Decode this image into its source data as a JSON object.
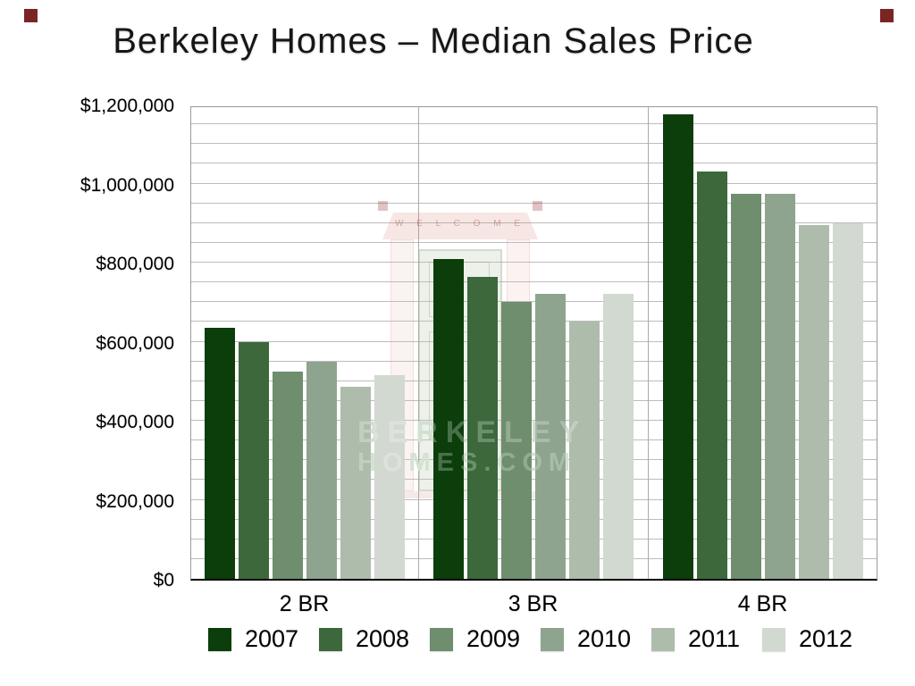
{
  "title": "Berkeley Homes – Median Sales Price",
  "theme": {
    "accent_red": "#7b2425",
    "grid_color": "#bcbcbc",
    "axis_color": "#000000"
  },
  "watermark": {
    "line1": "BERKELEY",
    "line2": "HOMES.COM",
    "welcome": "W E L C O M E"
  },
  "chart_data": {
    "type": "bar",
    "title": "Berkeley Homes – Median Sales Price",
    "categories": [
      "2 BR",
      "3 BR",
      "4 BR"
    ],
    "series": [
      {
        "name": "2007",
        "color": "#0B3E0B",
        "values": [
          635000,
          810000,
          1175000
        ]
      },
      {
        "name": "2008",
        "color": "#3C683C",
        "values": [
          600000,
          765000,
          1030000
        ]
      },
      {
        "name": "2009",
        "color": "#6E8E6E",
        "values": [
          525000,
          700000,
          975000
        ]
      },
      {
        "name": "2010",
        "color": "#8EA48E",
        "values": [
          550000,
          720000,
          975000
        ]
      },
      {
        "name": "2011",
        "color": "#AEBCAC",
        "values": [
          485000,
          650000,
          895000
        ]
      },
      {
        "name": "2012",
        "color": "#D2D9D0",
        "values": [
          515000,
          720000,
          900000
        ]
      }
    ],
    "ylabel": "",
    "xlabel": "",
    "ylim": [
      0,
      1200000
    ],
    "y_tick_step": 200000,
    "y_minor_step": 50000,
    "y_tick_labels": [
      "$0",
      "$200,000",
      "$400,000",
      "$600,000",
      "$800,000",
      "$1,000,000",
      "$1,200,000"
    ],
    "grid": "horizontal-minor",
    "legend_position": "bottom"
  }
}
